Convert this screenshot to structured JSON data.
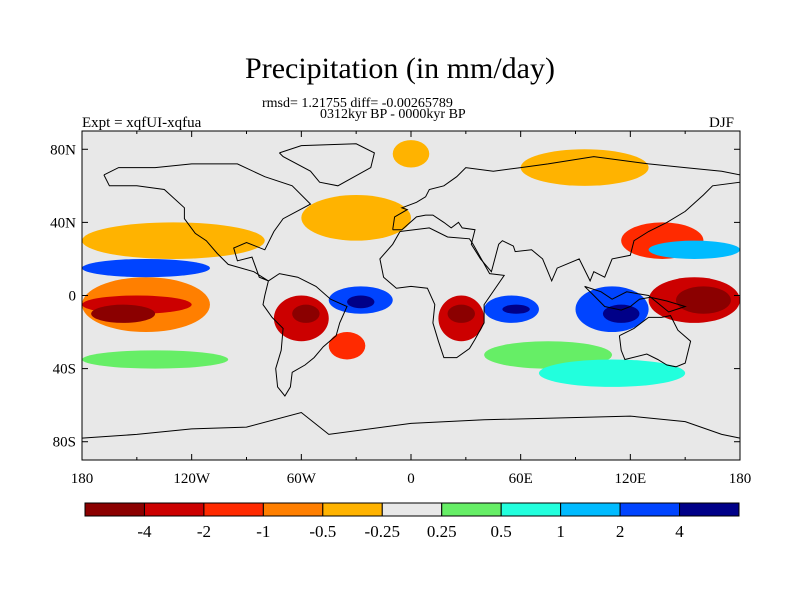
{
  "title": "Precipitation (in mm/day)",
  "stats_line": "rmsd= 1.21755 diff= -0.00265789",
  "period_line": "0312kyr BP - 0000kyr BP",
  "experiment_label": "Expt = xqfUI-xqfua",
  "season_label": "DJF",
  "axes": {
    "y_ticks": [
      "80N",
      "40N",
      "0",
      "40S",
      "80S"
    ],
    "x_ticks": [
      "180",
      "120W",
      "60W",
      "0",
      "60E",
      "120E",
      "180"
    ]
  },
  "colorbar": {
    "colors": [
      "#8b0000",
      "#cc0000",
      "#ff2a00",
      "#ff7f00",
      "#ffb300",
      "#e8e8e8",
      "#66ee66",
      "#22ffdd",
      "#00bbff",
      "#0044ff",
      "#000088"
    ],
    "labels": [
      "-4",
      "-2",
      "-1",
      "-0.5",
      "-0.25",
      "0.25",
      "0.5",
      "1",
      "2",
      "4"
    ]
  },
  "map_data": {
    "type": "filled-contour-map",
    "variable": "precipitation difference",
    "units": "mm/day",
    "lon_range": [
      -180,
      180
    ],
    "lat_range": [
      -90,
      90
    ],
    "levels": [
      -4,
      -2,
      -1,
      -0.5,
      -0.25,
      0.25,
      0.5,
      1,
      2,
      4
    ],
    "background_color": "#e8e8e8",
    "coast_color": "#000000",
    "features": [
      {
        "name": "tropical-pacific-dry-band",
        "lon": [
          -180,
          -110
        ],
        "lat": [
          -20,
          10
        ],
        "color": "#ff7f00"
      },
      {
        "name": "south-pacific-green-belt",
        "lon": [
          -180,
          -100
        ],
        "lat": [
          -40,
          -30
        ],
        "color": "#66ee66"
      },
      {
        "name": "north-pacific-orange",
        "lon": [
          -180,
          -80
        ],
        "lat": [
          20,
          40
        ],
        "color": "#ffb300"
      },
      {
        "name": "east-pacific-dry-strip",
        "lon": [
          -180,
          -120
        ],
        "lat": [
          -10,
          0
        ],
        "color": "#cc0000"
      },
      {
        "name": "pacific-blue-tongue",
        "lon": [
          -180,
          -110
        ],
        "lat": [
          10,
          20
        ],
        "color": "#0044ff"
      },
      {
        "name": "pacific-core-dry",
        "lon": [
          -175,
          -140
        ],
        "lat": [
          -15,
          -5
        ],
        "color": "#8b0000"
      },
      {
        "name": "amazon-dry",
        "lon": [
          -75,
          -45
        ],
        "lat": [
          -25,
          0
        ],
        "color": "#cc0000"
      },
      {
        "name": "amazon-core",
        "lon": [
          -65,
          -50
        ],
        "lat": [
          -15,
          -5
        ],
        "color": "#8b0000"
      },
      {
        "name": "atlantic-itcz-wet",
        "lon": [
          -45,
          -10
        ],
        "lat": [
          -10,
          5
        ],
        "color": "#0044ff"
      },
      {
        "name": "atlantic-core",
        "lon": [
          -35,
          -20
        ],
        "lat": [
          -7,
          0
        ],
        "color": "#000088"
      },
      {
        "name": "south-atlantic-dry",
        "lon": [
          -45,
          -25
        ],
        "lat": [
          -35,
          -20
        ],
        "color": "#ff2a00"
      },
      {
        "name": "north-atlantic-orange",
        "lon": [
          -60,
          0
        ],
        "lat": [
          30,
          55
        ],
        "color": "#ffb300"
      },
      {
        "name": "greenland-orange",
        "lon": [
          -10,
          10
        ],
        "lat": [
          70,
          85
        ],
        "color": "#ffb300"
      },
      {
        "name": "southern-africa-dry",
        "lon": [
          15,
          40
        ],
        "lat": [
          -25,
          0
        ],
        "color": "#cc0000"
      },
      {
        "name": "southern-africa-core",
        "lon": [
          20,
          35
        ],
        "lat": [
          -15,
          -5
        ],
        "color": "#8b0000"
      },
      {
        "name": "indian-ocean-wet",
        "lon": [
          40,
          70
        ],
        "lat": [
          -15,
          0
        ],
        "color": "#0044ff"
      },
      {
        "name": "indian-ocean-core",
        "lon": [
          50,
          65
        ],
        "lat": [
          -10,
          -5
        ],
        "color": "#000088"
      },
      {
        "name": "maritime-continent-wet",
        "lon": [
          90,
          130
        ],
        "lat": [
          -20,
          5
        ],
        "color": "#0044ff"
      },
      {
        "name": "maritime-core",
        "lon": [
          105,
          125
        ],
        "lat": [
          -15,
          -5
        ],
        "color": "#000088"
      },
      {
        "name": "west-pacific-dry",
        "lon": [
          130,
          180
        ],
        "lat": [
          -15,
          10
        ],
        "color": "#cc0000"
      },
      {
        "name": "west-pacific-core",
        "lon": [
          145,
          175
        ],
        "lat": [
          -10,
          5
        ],
        "color": "#8b0000"
      },
      {
        "name": "northwest-pacific-dry",
        "lon": [
          115,
          160
        ],
        "lat": [
          20,
          40
        ],
        "color": "#ff2a00"
      },
      {
        "name": "north-pacific-blue",
        "lon": [
          130,
          180
        ],
        "lat": [
          20,
          30
        ],
        "color": "#00bbff"
      },
      {
        "name": "siberia-orange",
        "lon": [
          60,
          130
        ],
        "lat": [
          60,
          80
        ],
        "color": "#ffb300"
      },
      {
        "name": "south-indian-green",
        "lon": [
          40,
          110
        ],
        "lat": [
          -40,
          -25
        ],
        "color": "#66ee66"
      },
      {
        "name": "southern-ocean-cyan",
        "lon": [
          70,
          150
        ],
        "lat": [
          -50,
          -35
        ],
        "color": "#22ffdd"
      }
    ]
  }
}
